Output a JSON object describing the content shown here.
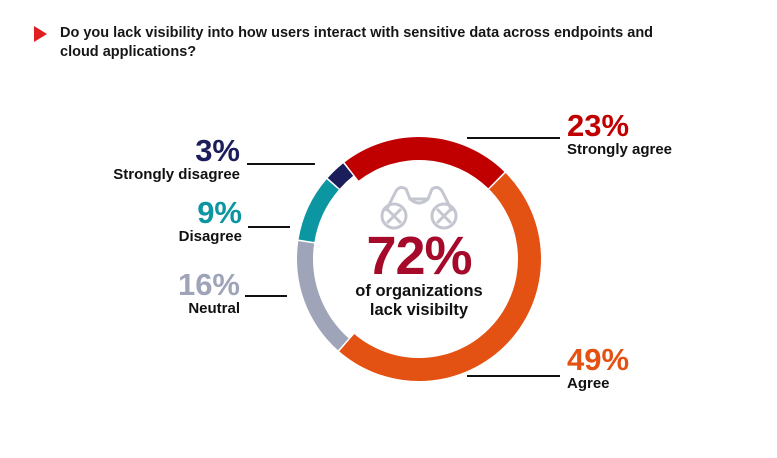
{
  "title": "Do you lack visibility into how users interact with sensitive data across endpoints and cloud applications?",
  "chart_data": {
    "type": "pie",
    "variant": "donut",
    "title": "Do you lack visibility into how users interact with sensitive data across endpoints and cloud applications?",
    "categories": [
      "Strongly agree",
      "Agree",
      "Neutral",
      "Disagree",
      "Strongly disagree"
    ],
    "values": [
      23,
      49,
      16,
      9,
      3
    ],
    "labels": [
      "23%",
      "49%",
      "16%",
      "9%",
      "3%"
    ],
    "colors": [
      "#c00000",
      "#e35213",
      "#9fa4b9",
      "#0b96a1",
      "#1b1e5a"
    ],
    "center": {
      "value": "72%",
      "line1": "of organizations",
      "line2": "lack visibilty",
      "color": "#a50a2b"
    },
    "center_icon": "binoculars-icon"
  }
}
